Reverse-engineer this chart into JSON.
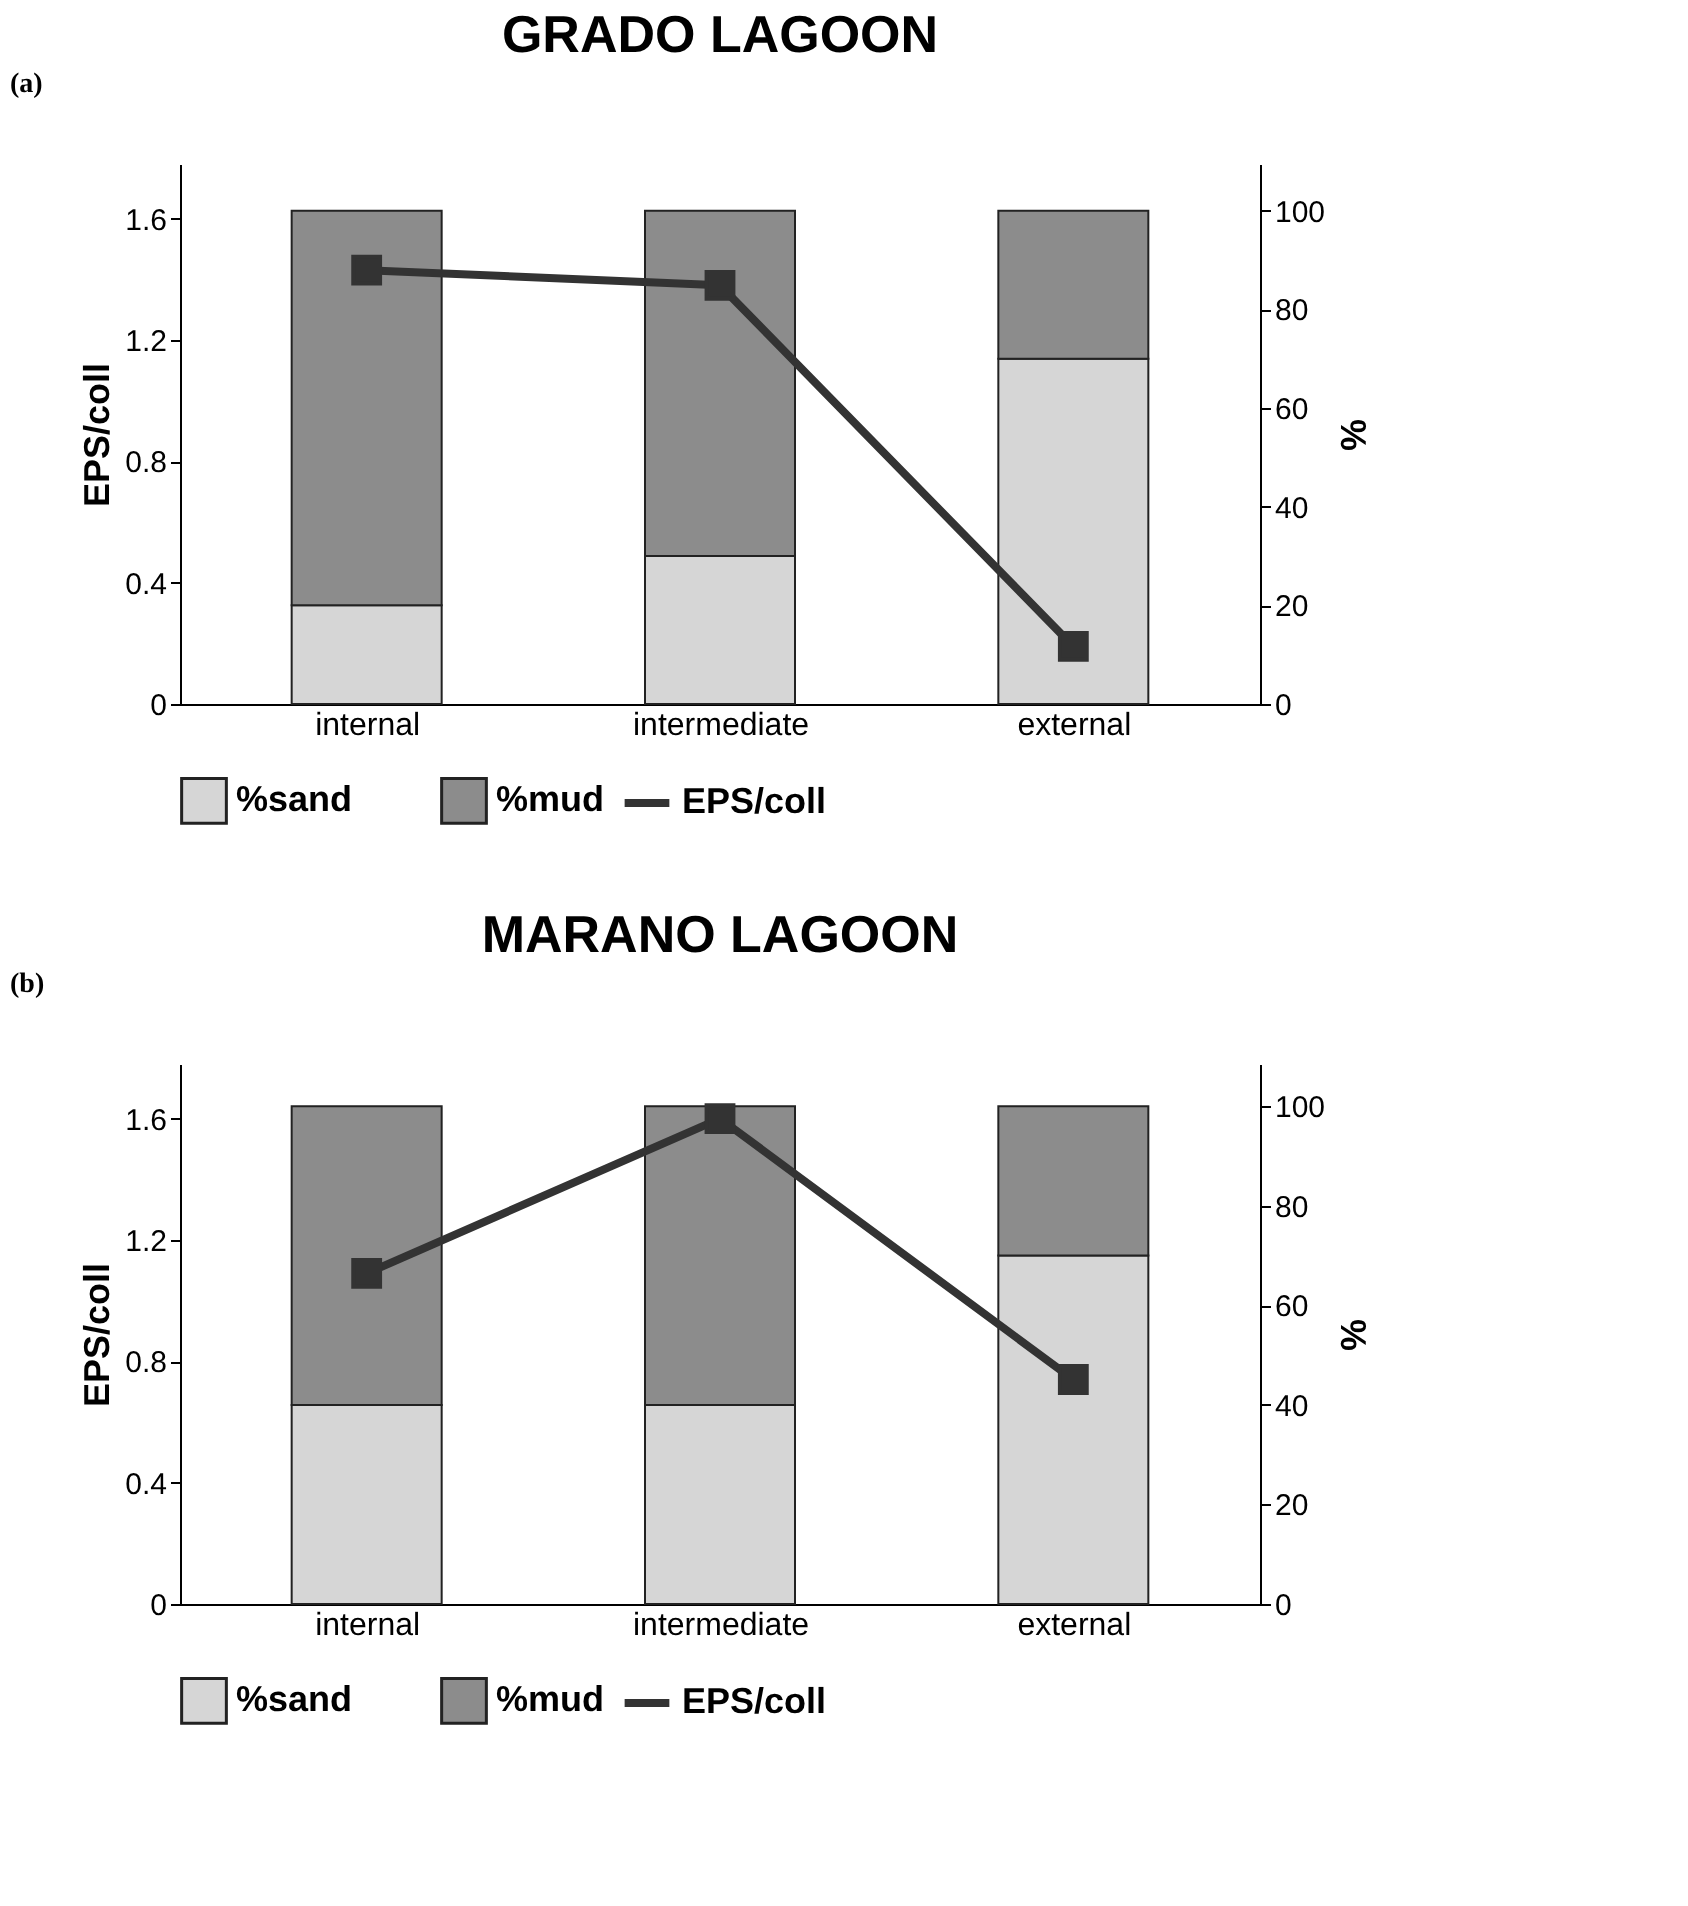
{
  "chart_data": [
    {
      "type": "bar",
      "title": "GRADO LAGOON",
      "annotations": [
        "(a)"
      ],
      "categories": [
        "internal",
        "intermediate",
        "external"
      ],
      "stacked": true,
      "ylabel": "EPS/coll",
      "y2label": "%",
      "ylim": [
        0,
        1.78
      ],
      "yticks": [
        0,
        0.4,
        0.8,
        1.2,
        1.6
      ],
      "y2lim": [
        0,
        109.5
      ],
      "y2ticks": [
        0,
        20,
        40,
        60,
        80,
        100
      ],
      "legend": "bottom",
      "marker": "square",
      "line_style": "solid",
      "series": [
        {
          "name": "%sand",
          "color": "#d6d6d6",
          "axis": "y2",
          "values": [
            20,
            30,
            70
          ]
        },
        {
          "name": "%mud",
          "color": "#8c8c8c",
          "axis": "y2",
          "values": [
            80,
            70,
            30
          ]
        },
        {
          "name": "EPS/coll",
          "type": "line",
          "color": "#333333",
          "values": [
            1.43,
            1.38,
            0.19
          ]
        }
      ]
    },
    {
      "type": "bar",
      "title": "MARANO LAGOON",
      "annotations": [
        "(b)"
      ],
      "categories": [
        "internal",
        "intermediate",
        "external"
      ],
      "stacked": true,
      "ylabel": "EPS/coll",
      "y2label": "%",
      "ylim": [
        0,
        1.78
      ],
      "yticks": [
        0,
        0.4,
        0.8,
        1.2,
        1.6
      ],
      "y2lim": [
        0,
        108.5
      ],
      "y2ticks": [
        0,
        20,
        40,
        60,
        80,
        100
      ],
      "legend": "bottom",
      "marker": "square",
      "line_style": "solid",
      "series": [
        {
          "name": "%sand",
          "color": "#d6d6d6",
          "axis": "y2",
          "values": [
            40,
            40,
            70
          ]
        },
        {
          "name": "%mud",
          "color": "#8c8c8c",
          "axis": "y2",
          "values": [
            60,
            60,
            30
          ]
        },
        {
          "name": "EPS/coll",
          "type": "line",
          "color": "#333333",
          "values": [
            1.09,
            1.6,
            0.74
          ]
        }
      ]
    }
  ]
}
